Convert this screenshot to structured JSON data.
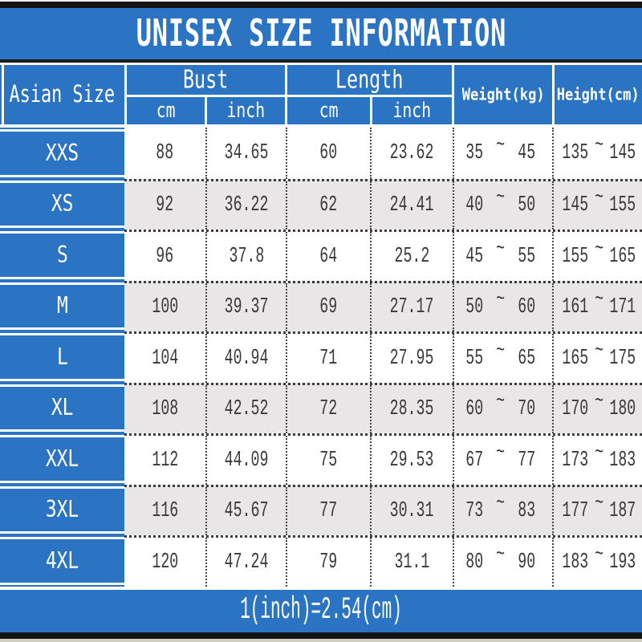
{
  "title": "UNISEX SIZE INFORMATION",
  "footer_note": "1(inch)=2.54(cm)",
  "symbols": {
    "tilde": "~"
  },
  "colors": {
    "blue": "#2b73c3",
    "alt_row": "#e8e6e7",
    "frame_bar": "#151515",
    "text": "#383838"
  },
  "header": {
    "size_column": "Asian Size",
    "bust": {
      "label": "Bust",
      "sub_cm": "cm",
      "sub_inch": "inch"
    },
    "length": {
      "label": "Length",
      "sub_cm": "cm",
      "sub_inch": "inch"
    },
    "weight": "Weight(kg)",
    "height": "Height(cm)"
  },
  "rows": [
    {
      "size": "XXS",
      "bust_cm": "88",
      "bust_inch": "34.65",
      "length_cm": "60",
      "length_inch": "23.62",
      "weight_min": "35",
      "weight_max": "45",
      "height_min": "135",
      "height_max": "145"
    },
    {
      "size": "XS",
      "bust_cm": "92",
      "bust_inch": "36.22",
      "length_cm": "62",
      "length_inch": "24.41",
      "weight_min": "40",
      "weight_max": "50",
      "height_min": "145",
      "height_max": "155"
    },
    {
      "size": "S",
      "bust_cm": "96",
      "bust_inch": "37.8",
      "length_cm": "64",
      "length_inch": "25.2",
      "weight_min": "45",
      "weight_max": "55",
      "height_min": "155",
      "height_max": "165"
    },
    {
      "size": "M",
      "bust_cm": "100",
      "bust_inch": "39.37",
      "length_cm": "69",
      "length_inch": "27.17",
      "weight_min": "50",
      "weight_max": "60",
      "height_min": "161",
      "height_max": "171"
    },
    {
      "size": "L",
      "bust_cm": "104",
      "bust_inch": "40.94",
      "length_cm": "71",
      "length_inch": "27.95",
      "weight_min": "55",
      "weight_max": "65",
      "height_min": "165",
      "height_max": "175"
    },
    {
      "size": "XL",
      "bust_cm": "108",
      "bust_inch": "42.52",
      "length_cm": "72",
      "length_inch": "28.35",
      "weight_min": "60",
      "weight_max": "70",
      "height_min": "170",
      "height_max": "180"
    },
    {
      "size": "XXL",
      "bust_cm": "112",
      "bust_inch": "44.09",
      "length_cm": "75",
      "length_inch": "29.53",
      "weight_min": "67",
      "weight_max": "77",
      "height_min": "173",
      "height_max": "183"
    },
    {
      "size": "3XL",
      "bust_cm": "116",
      "bust_inch": "45.67",
      "length_cm": "77",
      "length_inch": "30.31",
      "weight_min": "73",
      "weight_max": "83",
      "height_min": "177",
      "height_max": "187"
    },
    {
      "size": "4XL",
      "bust_cm": "120",
      "bust_inch": "47.24",
      "length_cm": "79",
      "length_inch": "31.1",
      "weight_min": "80",
      "weight_max": "90",
      "height_min": "183",
      "height_max": "193"
    }
  ]
}
